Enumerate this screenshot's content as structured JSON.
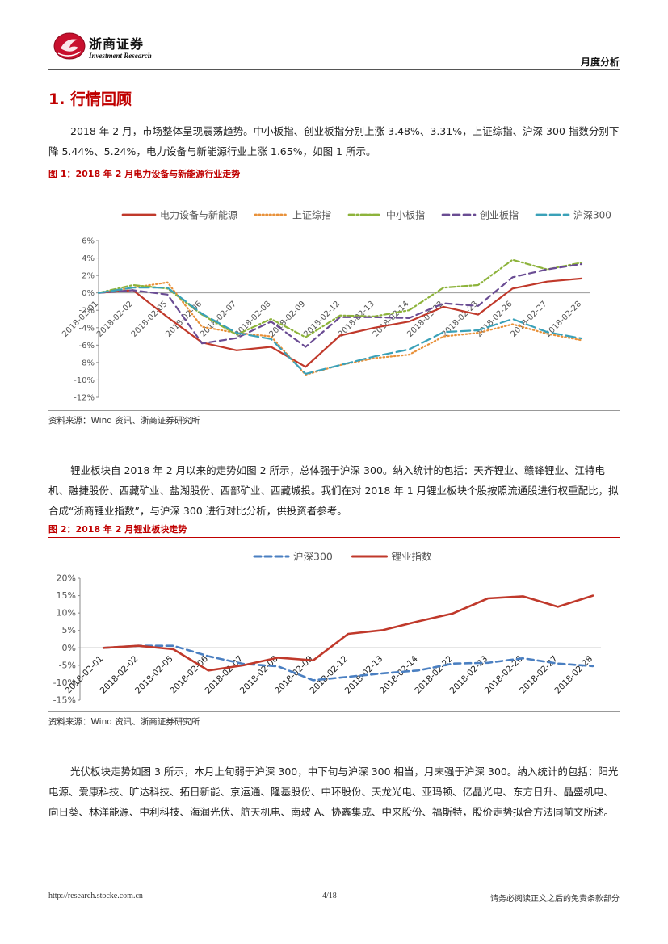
{
  "header": {
    "brand_name": "浙商证券",
    "brand_sub": "Investment Research",
    "report_type": "月度分析"
  },
  "section": {
    "title": "1. 行情回顾"
  },
  "paragraphs": {
    "p1": "2018 年 2 月，市场整体呈现震荡趋势。中小板指、创业板指分别上涨 3.48%、3.31%，上证综指、沪深 300 指数分别下降 5.44%、5.24%，电力设备与新能源行业上涨 1.65%，如图 1 所示。",
    "p2": "锂业板块自 2018 年 2 月以来的走势如图 2 所示，总体强于沪深 300。纳入统计的包括：天齐锂业、赣锋锂业、江特电机、融捷股份、西藏矿业、盐湖股份、西部矿业、西藏城投。我们在对 2018 年 1 月锂业板块个股按照流通股进行权重配比，拟合成“浙商锂业指数”，与沪深 300 进行对比分析，供投资者参考。",
    "p3": "光伏板块走势如图 3 所示，本月上旬弱于沪深 300，中下旬与沪深 300 相当，月末强于沪深 300。纳入统计的包括：阳光电源、爱康科技、旷达科技、拓日新能、京运通、隆基股份、中环股份、天龙光电、亚玛顿、亿晶光电、东方日升、晶盛机电、向日葵、林洋能源、中利科技、海润光伏、航天机电、南玻 A、协鑫集成、中来股份、福斯特，股价走势拟合方法同前文所述。"
  },
  "figures": {
    "fig1": {
      "title": "图 1：2018 年 2 月电力设备与新能源行业走势",
      "source": "资料来源：Wind 资讯、浙商证券研究所"
    },
    "fig2": {
      "title": "图 2：2018 年 2 月锂业板块走势",
      "source": "资料来源：Wind 资讯、浙商证券研究所"
    }
  },
  "footer": {
    "url": "http://research.stocke.com.cn",
    "page": "4/18",
    "disclaimer": "请务必阅读正文之后的免责条款部分"
  },
  "chart_data": [
    {
      "type": "line",
      "title": "",
      "x": [
        "2018-02-01",
        "2018-02-02",
        "2018-02-05",
        "2018-02-06",
        "2018-02-07",
        "2018-02-08",
        "2018-02-09",
        "2018-02-12",
        "2018-02-13",
        "2018-02-14",
        "2018-02-22",
        "2018-02-23",
        "2018-02-26",
        "2018-02-27",
        "2018-02-28"
      ],
      "ylim": [
        -12,
        6
      ],
      "yticks": [
        "6%",
        "4%",
        "2%",
        "0%",
        "-2%",
        "-4%",
        "-6%",
        "-8%",
        "-10%",
        "-12%"
      ],
      "legend_position": "top",
      "series": [
        {
          "name": "电力设备与新能源",
          "color": "#c0392b",
          "style": "solid",
          "values": [
            0,
            0.3,
            -2.8,
            -5.7,
            -6.6,
            -6.2,
            -8.5,
            -4.9,
            -4.0,
            -3.3,
            -1.6,
            -2.5,
            0.5,
            1.3,
            1.65
          ]
        },
        {
          "name": "上证综指",
          "color": "#e8913a",
          "style": "dotted",
          "values": [
            0,
            0.6,
            1.2,
            -3.9,
            -4.6,
            -5.0,
            -9.4,
            -8.3,
            -7.5,
            -7.1,
            -5.0,
            -4.6,
            -3.6,
            -4.7,
            -5.44
          ]
        },
        {
          "name": "中小板指",
          "color": "#8db33b",
          "style": "dashdot",
          "values": [
            0,
            0.9,
            0.5,
            -2.5,
            -4.8,
            -3.0,
            -5.1,
            -2.6,
            -2.7,
            -2.0,
            0.6,
            0.9,
            3.8,
            2.7,
            3.48
          ]
        },
        {
          "name": "创业板指",
          "color": "#6a4c93",
          "style": "dashed",
          "values": [
            0,
            0.3,
            -0.2,
            -5.8,
            -5.2,
            -3.3,
            -6.2,
            -2.8,
            -2.8,
            -2.9,
            -1.2,
            -1.5,
            1.8,
            2.7,
            3.31
          ]
        },
        {
          "name": "沪深300",
          "color": "#3aa1b8",
          "style": "longdash",
          "values": [
            0,
            0.6,
            0.6,
            -2.4,
            -4.6,
            -5.3,
            -9.3,
            -8.3,
            -7.3,
            -6.5,
            -4.5,
            -4.3,
            -3.0,
            -4.5,
            -5.24
          ]
        }
      ]
    },
    {
      "type": "line",
      "title": "",
      "x": [
        "2018-02-01",
        "2018-02-02",
        "2018-02-05",
        "2018-02-06",
        "2018-02-07",
        "2018-02-08",
        "2018-02-09",
        "2018-02-12",
        "2018-02-13",
        "2018-02-14",
        "2018-02-22",
        "2018-02-23",
        "2018-02-26",
        "2018-02-27",
        "2018-02-28"
      ],
      "ylim": [
        -15,
        20
      ],
      "yticks": [
        "20%",
        "15%",
        "10%",
        "5%",
        "0%",
        "-5%",
        "-10%",
        "-15%"
      ],
      "legend_position": "top",
      "series": [
        {
          "name": "沪深300",
          "color": "#4a7fc1",
          "style": "dashed",
          "values": [
            0,
            0.6,
            0.6,
            -2.4,
            -4.6,
            -5.3,
            -9.3,
            -8.3,
            -7.3,
            -6.5,
            -4.5,
            -4.3,
            -3.0,
            -4.5,
            -5.24
          ]
        },
        {
          "name": "锂业指数",
          "color": "#c0392b",
          "style": "solid",
          "values": [
            0,
            0.6,
            -0.4,
            -6.5,
            -5.0,
            -2.8,
            -3.6,
            4.0,
            5.1,
            7.6,
            9.9,
            14.2,
            14.8,
            11.8,
            15.0
          ]
        }
      ]
    }
  ]
}
